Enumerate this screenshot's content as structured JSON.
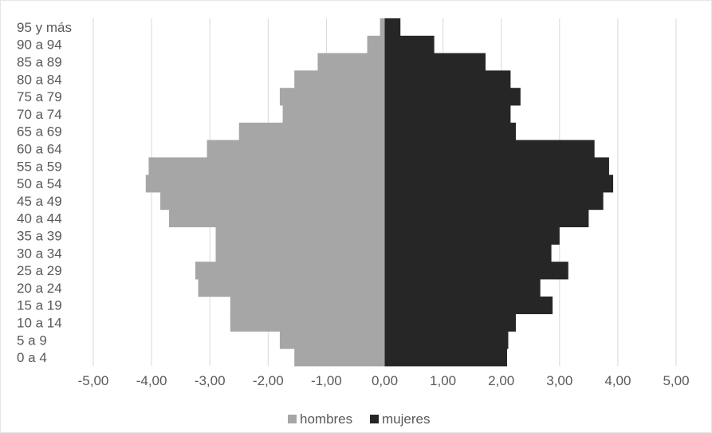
{
  "chart_data": {
    "type": "bar",
    "orientation": "horizontal",
    "stacked": "diverging",
    "categories": [
      "0 a 4",
      "5 a 9",
      "10 a 14",
      "15 a 19",
      "20 a 24",
      "25 a 29",
      "30 a 34",
      "35 a 39",
      "40 a 44",
      "45 a 49",
      "50 a 54",
      "55 a 59",
      "60 a 64",
      "65 a 69",
      "70 a 74",
      "75 a 79",
      "80 a 84",
      "85 a 89",
      "90 a 94",
      "95 y más"
    ],
    "series": [
      {
        "name": "hombres",
        "color": "#a6a6a6",
        "values": [
          -1.55,
          -1.8,
          -2.65,
          -2.65,
          -3.2,
          -3.25,
          -2.9,
          -2.9,
          -3.7,
          -3.85,
          -4.1,
          -4.05,
          -3.05,
          -2.5,
          -1.75,
          -1.8,
          -1.55,
          -1.15,
          -0.3,
          -0.08
        ]
      },
      {
        "name": "mujeres",
        "color": "#262626",
        "values": [
          2.1,
          2.12,
          2.25,
          2.88,
          2.67,
          3.15,
          2.86,
          3.0,
          3.5,
          3.75,
          3.92,
          3.85,
          3.6,
          2.25,
          2.16,
          2.33,
          2.16,
          1.73,
          0.85,
          0.27
        ]
      }
    ],
    "xlim": [
      -5,
      5
    ],
    "x_ticks": [
      "-5,00",
      "-4,00",
      "-3,00",
      "-2,00",
      "-1,00",
      "0,00",
      "1,00",
      "2,00",
      "3,00",
      "4,00",
      "5,00"
    ],
    "grid": true,
    "legend": "bottom-center",
    "title": "",
    "xlabel": "",
    "ylabel": ""
  }
}
